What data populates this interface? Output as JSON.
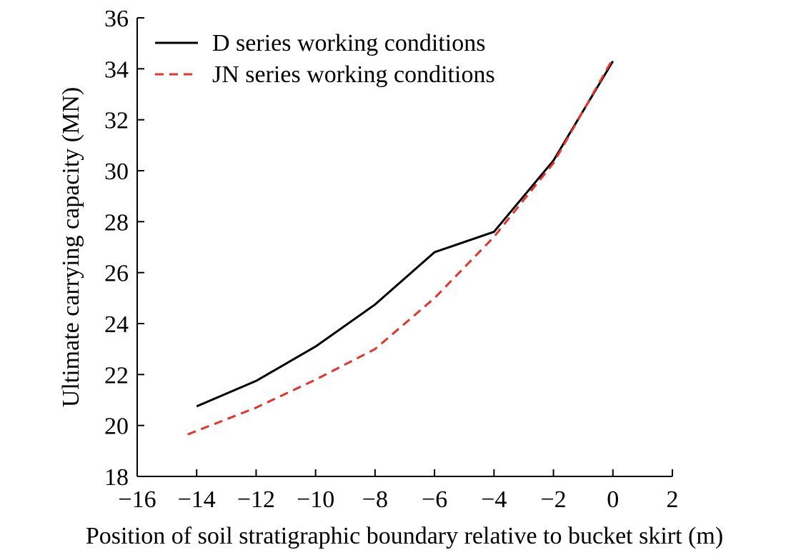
{
  "chart_data": {
    "type": "line",
    "title": "",
    "xlabel": "Position of soil stratigraphic boundary relative to bucket skirt (m)",
    "ylabel": "Ultimate carrying capacity (MN)",
    "xlim": [
      -16,
      2
    ],
    "ylim": [
      18,
      36
    ],
    "xticks": [
      -16,
      -14,
      -12,
      -10,
      -8,
      -6,
      -4,
      -2,
      0,
      2
    ],
    "yticks": [
      18,
      20,
      22,
      24,
      26,
      28,
      30,
      32,
      34,
      36
    ],
    "xtick_labels": [
      "−16",
      "−14",
      "−12",
      "−10",
      "−8",
      "−6",
      "−4",
      "−2",
      "0",
      "2"
    ],
    "ytick_labels": [
      "18",
      "20",
      "22",
      "24",
      "26",
      "28",
      "30",
      "32",
      "34",
      "36"
    ],
    "grid": false,
    "legend_position": "top-left",
    "series": [
      {
        "name": "D series working conditions",
        "color": "#000000",
        "style": "solid",
        "x": [
          -14,
          -12,
          -10,
          -8,
          -6,
          -4,
          -2,
          0
        ],
        "y": [
          20.75,
          21.75,
          23.1,
          24.75,
          26.8,
          27.6,
          30.4,
          34.3
        ]
      },
      {
        "name": "JN series working conditions",
        "color": "#e8322e",
        "style": "dashed",
        "x": [
          -14.3,
          -12,
          -10,
          -8,
          -6,
          -4,
          -2,
          0
        ],
        "y": [
          19.65,
          20.7,
          21.8,
          23.0,
          25.0,
          27.4,
          30.3,
          34.4
        ]
      }
    ]
  }
}
